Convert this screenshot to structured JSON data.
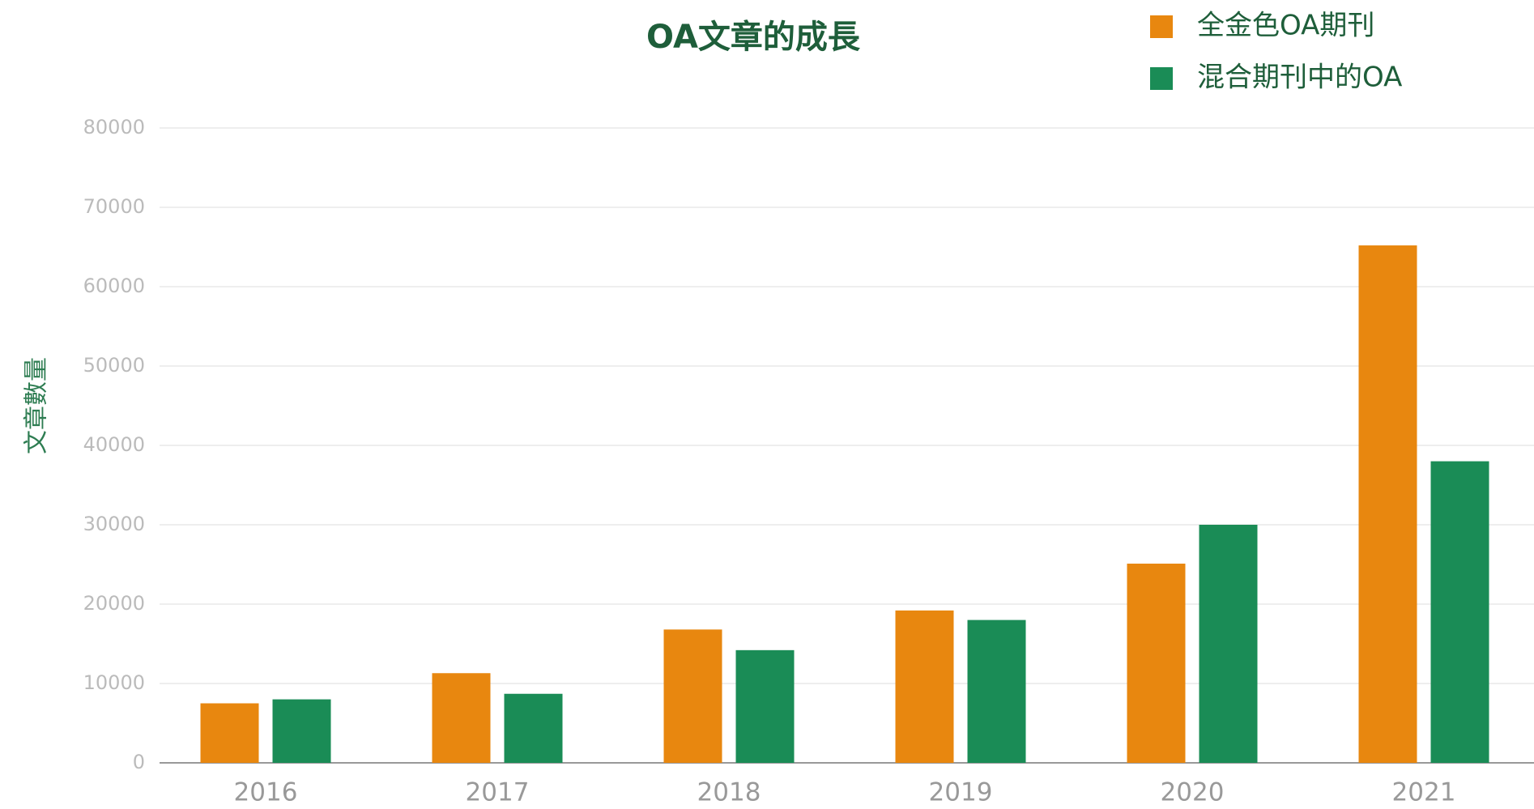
{
  "chart_data": {
    "type": "bar",
    "title": "OA文章的成長",
    "ylabel": "文章數量",
    "categories": [
      "2016",
      "2017",
      "2018",
      "2019",
      "2020",
      "2021"
    ],
    "series": [
      {
        "name": "全金色OA期刊",
        "color": "#e8870f",
        "values": [
          7500,
          11300,
          16800,
          19200,
          25100,
          65200
        ]
      },
      {
        "name": "混合期刊中的OA",
        "color": "#1a8c56",
        "values": [
          8000,
          8700,
          14200,
          18000,
          30000,
          38000
        ]
      }
    ],
    "ylim": [
      0,
      80000
    ],
    "yticks": [
      0,
      10000,
      20000,
      30000,
      40000,
      50000,
      60000,
      70000,
      80000
    ],
    "grid": true,
    "legend": "top-right"
  }
}
